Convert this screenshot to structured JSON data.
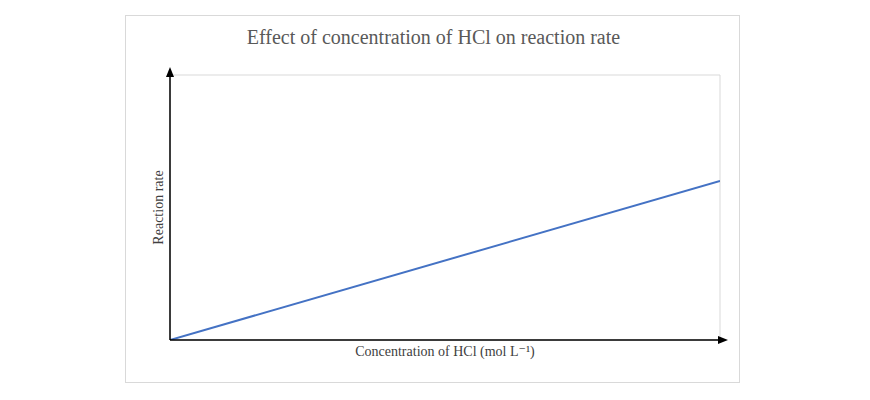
{
  "chart_data": {
    "type": "line",
    "title": "Effect of concentration of HCl on reaction rate",
    "x_label": "Concentration of HCl (mol L⁻¹)",
    "y_label": "Reaction rate",
    "x": [
      0,
      6
    ],
    "values": [
      0,
      3
    ],
    "color": "#4472c4",
    "xlim": [
      0,
      6
    ],
    "xticks": [
      0,
      1,
      2,
      3,
      4,
      5,
      6
    ],
    "ylim": [
      0,
      5
    ],
    "yticks": [
      0,
      1,
      2,
      3,
      4,
      5
    ],
    "grid": true,
    "tick_labels": false
  }
}
